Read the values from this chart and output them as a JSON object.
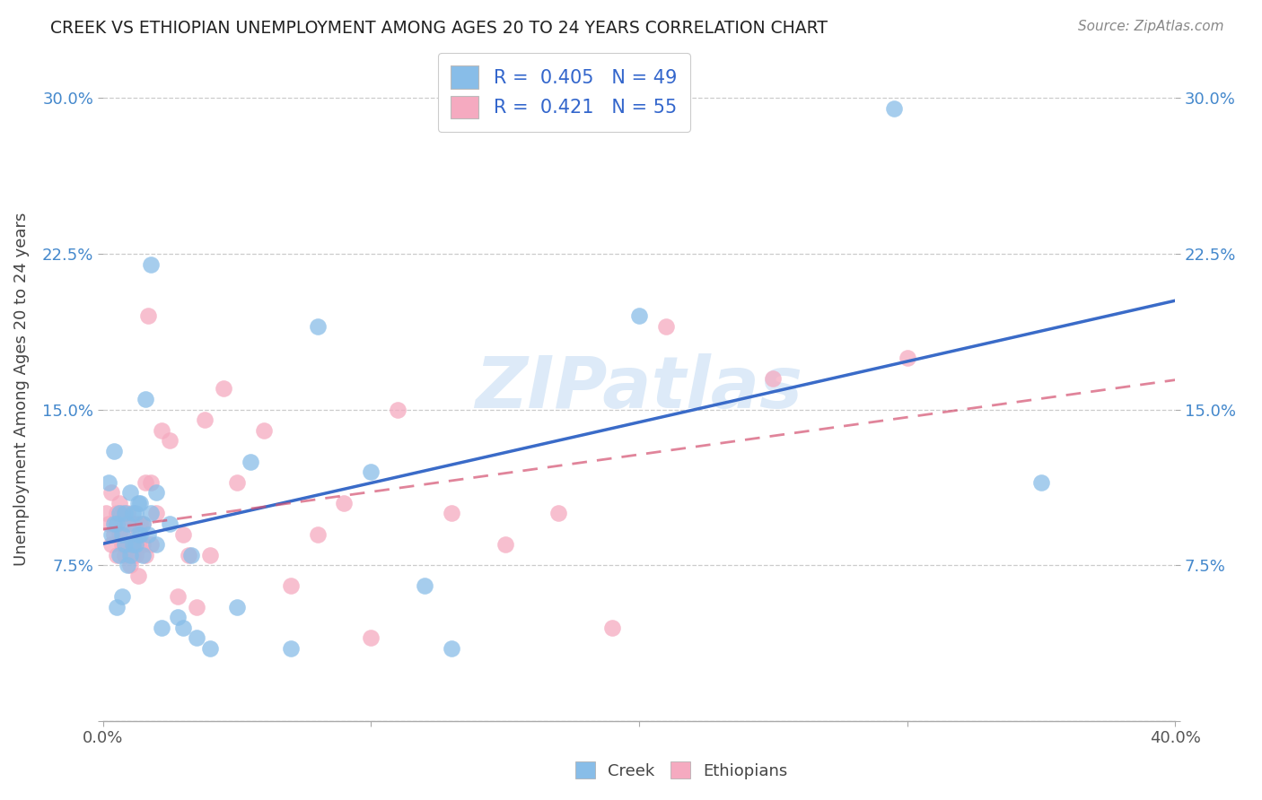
{
  "title": "CREEK VS ETHIOPIAN UNEMPLOYMENT AMONG AGES 20 TO 24 YEARS CORRELATION CHART",
  "source": "Source: ZipAtlas.com",
  "ylabel": "Unemployment Among Ages 20 to 24 years",
  "legend_label_creek": "Creek",
  "legend_label_ethiopians": "Ethiopians",
  "xlim": [
    0.0,
    0.4
  ],
  "ylim": [
    0.0,
    0.32
  ],
  "xtick_vals": [
    0.0,
    0.1,
    0.2,
    0.3,
    0.4
  ],
  "xticklabels": [
    "0.0%",
    "",
    "",
    "",
    "40.0%"
  ],
  "ytick_vals": [
    0.0,
    0.075,
    0.15,
    0.225,
    0.3
  ],
  "yticklabels": [
    "",
    "7.5%",
    "15.0%",
    "22.5%",
    "30.0%"
  ],
  "creek_color": "#88bde8",
  "ethiopian_color": "#f5aac0",
  "creek_line_color": "#3a6bc8",
  "ethiopian_line_color": "#d45070",
  "watermark": "ZIPatlas",
  "creek_scatter_x": [
    0.002,
    0.003,
    0.004,
    0.004,
    0.005,
    0.005,
    0.006,
    0.006,
    0.007,
    0.007,
    0.008,
    0.008,
    0.009,
    0.009,
    0.01,
    0.01,
    0.011,
    0.011,
    0.012,
    0.012,
    0.013,
    0.013,
    0.014,
    0.014,
    0.015,
    0.015,
    0.016,
    0.017,
    0.018,
    0.018,
    0.02,
    0.02,
    0.022,
    0.025,
    0.028,
    0.03,
    0.033,
    0.035,
    0.04,
    0.05,
    0.055,
    0.07,
    0.08,
    0.1,
    0.12,
    0.13,
    0.2,
    0.295,
    0.35
  ],
  "creek_scatter_y": [
    0.115,
    0.09,
    0.095,
    0.13,
    0.095,
    0.055,
    0.1,
    0.08,
    0.09,
    0.06,
    0.085,
    0.1,
    0.075,
    0.095,
    0.08,
    0.11,
    0.085,
    0.1,
    0.085,
    0.1,
    0.09,
    0.105,
    0.09,
    0.105,
    0.08,
    0.095,
    0.155,
    0.09,
    0.1,
    0.22,
    0.085,
    0.11,
    0.045,
    0.095,
    0.05,
    0.045,
    0.08,
    0.04,
    0.035,
    0.055,
    0.125,
    0.035,
    0.19,
    0.12,
    0.065,
    0.035,
    0.195,
    0.295,
    0.115
  ],
  "ethiopian_scatter_x": [
    0.001,
    0.002,
    0.003,
    0.003,
    0.004,
    0.005,
    0.005,
    0.006,
    0.006,
    0.007,
    0.007,
    0.008,
    0.008,
    0.009,
    0.009,
    0.01,
    0.01,
    0.011,
    0.011,
    0.012,
    0.012,
    0.013,
    0.013,
    0.014,
    0.015,
    0.015,
    0.016,
    0.016,
    0.017,
    0.018,
    0.018,
    0.02,
    0.022,
    0.025,
    0.028,
    0.03,
    0.032,
    0.035,
    0.038,
    0.04,
    0.045,
    0.05,
    0.06,
    0.07,
    0.08,
    0.09,
    0.1,
    0.11,
    0.13,
    0.15,
    0.17,
    0.19,
    0.21,
    0.25,
    0.3
  ],
  "ethiopian_scatter_y": [
    0.1,
    0.095,
    0.085,
    0.11,
    0.09,
    0.08,
    0.1,
    0.09,
    0.105,
    0.085,
    0.1,
    0.08,
    0.095,
    0.085,
    0.1,
    0.075,
    0.09,
    0.08,
    0.095,
    0.08,
    0.095,
    0.07,
    0.085,
    0.095,
    0.085,
    0.095,
    0.08,
    0.115,
    0.195,
    0.085,
    0.115,
    0.1,
    0.14,
    0.135,
    0.06,
    0.09,
    0.08,
    0.055,
    0.145,
    0.08,
    0.16,
    0.115,
    0.14,
    0.065,
    0.09,
    0.105,
    0.04,
    0.15,
    0.1,
    0.085,
    0.1,
    0.045,
    0.19,
    0.165,
    0.175
  ]
}
